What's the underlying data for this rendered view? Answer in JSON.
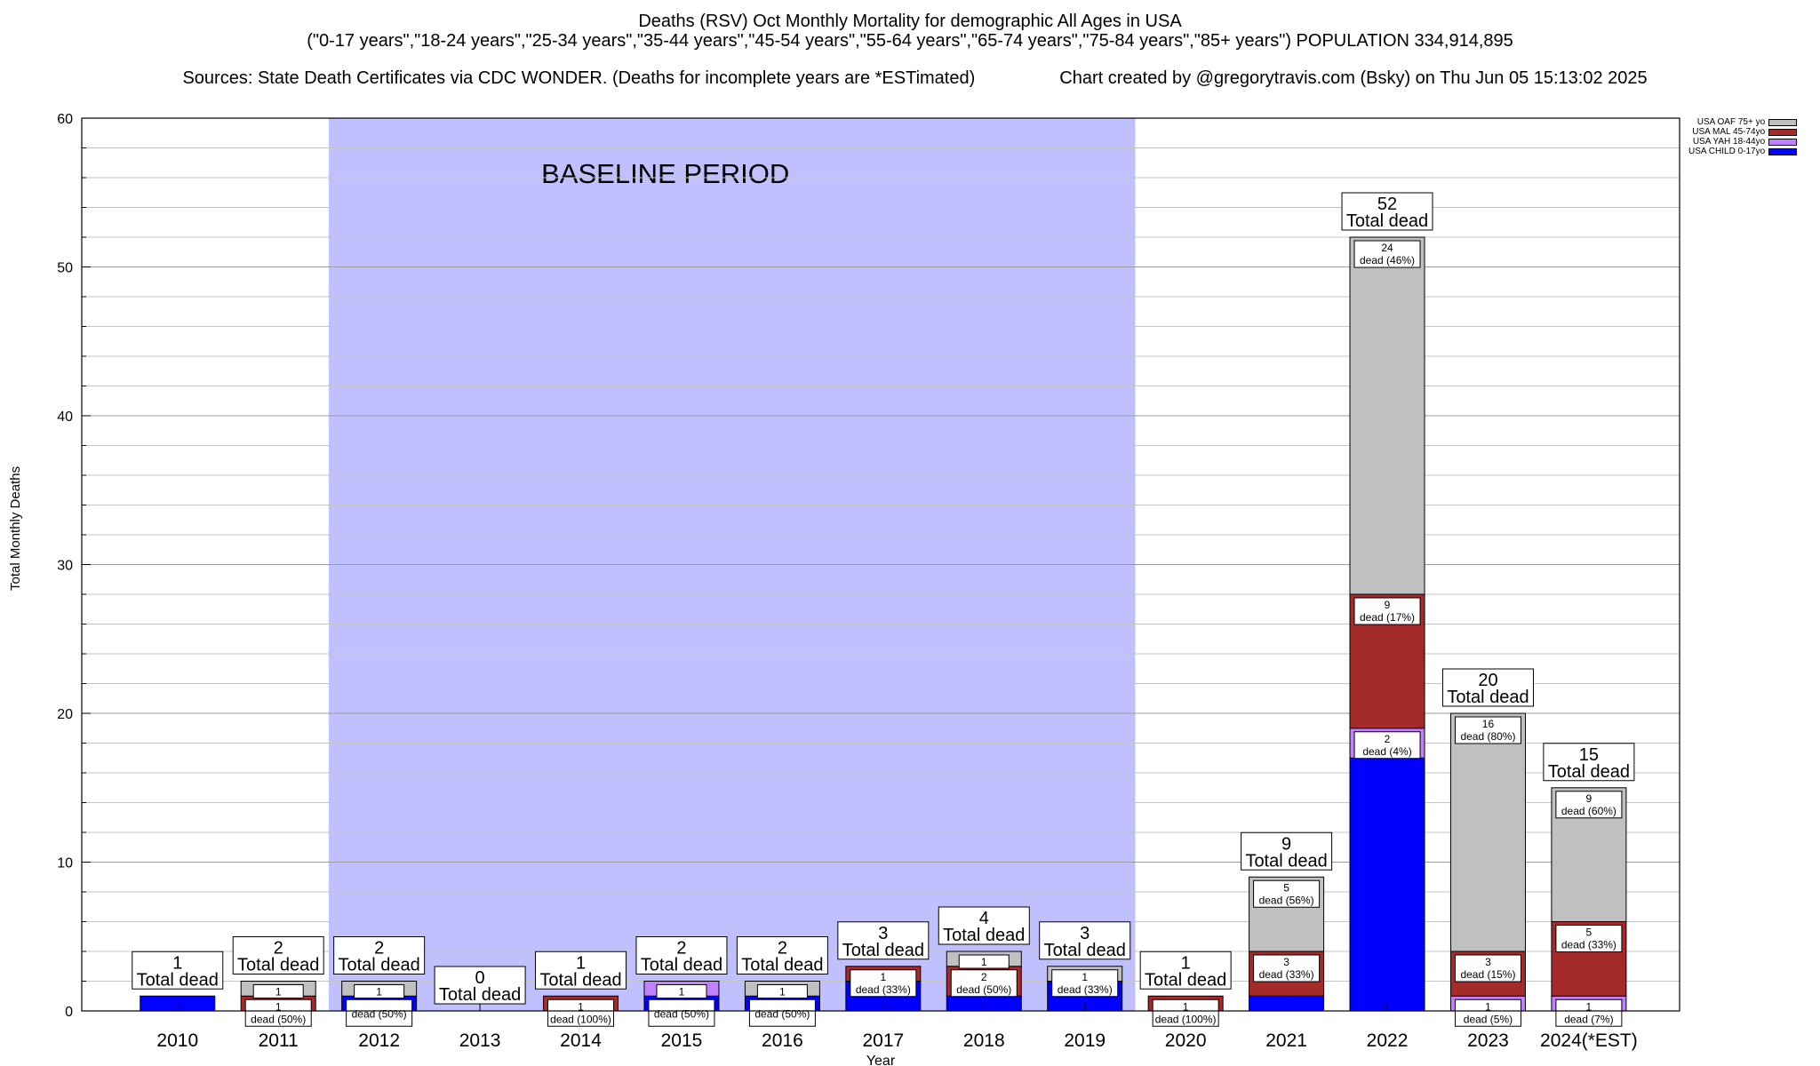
{
  "header": {
    "line1": "Deaths (RSV) Oct Monthly Mortality for demographic All Ages in USA",
    "line2": "(\"0-17 years\",\"18-24 years\",\"25-34 years\",\"35-44 years\",\"45-54 years\",\"55-64 years\",\"65-74 years\",\"75-84 years\",\"85+ years\") POPULATION 334,914,895",
    "line3_left": "Sources: State Death Certificates via CDC WONDER. (Deaths for incomplete years are *ESTimated)",
    "line3_right": "Chart created by @gregorytravis.com (Bsky) on Thu Jun 05 15:13:02 2025"
  },
  "chart_data": {
    "type": "bar",
    "stacked": true,
    "categories": [
      "2010",
      "2011",
      "2012",
      "2013",
      "2014",
      "2015",
      "2016",
      "2017",
      "2018",
      "2019",
      "2020",
      "2021",
      "2022",
      "2023",
      "2024(*EST)"
    ],
    "series": [
      {
        "name": "USA CHILD 0-17yo",
        "color": "#0000ff",
        "values": [
          1,
          0,
          1,
          0,
          0,
          1,
          1,
          2,
          1,
          2,
          0,
          1,
          17,
          0,
          0
        ]
      },
      {
        "name": "USA YAH 18-44yo",
        "color": "#c080ff",
        "values": [
          0,
          0,
          0,
          0,
          0,
          1,
          0,
          0,
          0,
          0,
          0,
          0,
          2,
          1,
          1
        ]
      },
      {
        "name": "USA MAL 45-74yo",
        "color": "#a52a2a",
        "values": [
          0,
          1,
          0,
          0,
          1,
          0,
          0,
          1,
          2,
          0,
          1,
          3,
          9,
          3,
          5
        ]
      },
      {
        "name": "USA OAF 75+ yo",
        "color": "#c0c0c0",
        "values": [
          0,
          1,
          1,
          0,
          0,
          0,
          1,
          0,
          1,
          1,
          0,
          5,
          24,
          16,
          9
        ]
      }
    ],
    "totals": [
      1,
      2,
      2,
      0,
      1,
      2,
      2,
      3,
      4,
      3,
      1,
      9,
      52,
      20,
      15
    ],
    "total_label": "Total dead",
    "segment_labels": [
      {
        "cat": 1,
        "series": 2,
        "text": "1",
        "sub": "dead (50%)"
      },
      {
        "cat": 1,
        "series": 3,
        "text": "1",
        "sub": ""
      },
      {
        "cat": 2,
        "series": 0,
        "text": "",
        "sub": "dead (50%)"
      },
      {
        "cat": 2,
        "series": 3,
        "text": "1",
        "sub": ""
      },
      {
        "cat": 4,
        "series": 2,
        "text": "1",
        "sub": "dead (100%)"
      },
      {
        "cat": 5,
        "series": 0,
        "text": "",
        "sub": "dead (50%)"
      },
      {
        "cat": 5,
        "series": 1,
        "text": "1",
        "sub": ""
      },
      {
        "cat": 6,
        "series": 0,
        "text": "",
        "sub": "dead (50%)"
      },
      {
        "cat": 6,
        "series": 3,
        "text": "1",
        "sub": ""
      },
      {
        "cat": 7,
        "series": 2,
        "text": "1",
        "sub": "dead (33%)"
      },
      {
        "cat": 8,
        "series": 2,
        "text": "2",
        "sub": "dead (50%)"
      },
      {
        "cat": 8,
        "series": 3,
        "text": "1",
        "sub": ""
      },
      {
        "cat": 9,
        "series": 3,
        "text": "1",
        "sub": "dead (33%)"
      },
      {
        "cat": 10,
        "series": 2,
        "text": "1",
        "sub": "dead (100%)"
      },
      {
        "cat": 11,
        "series": 2,
        "text": "3",
        "sub": "dead (33%)"
      },
      {
        "cat": 11,
        "series": 3,
        "text": "5",
        "sub": "dead (56%)"
      },
      {
        "cat": 12,
        "series": 1,
        "text": "2",
        "sub": "dead (4%)"
      },
      {
        "cat": 12,
        "series": 2,
        "text": "9",
        "sub": "dead (17%)"
      },
      {
        "cat": 12,
        "series": 3,
        "text": "24",
        "sub": "dead (46%)"
      },
      {
        "cat": 13,
        "series": 1,
        "text": "1",
        "sub": "dead (5%)"
      },
      {
        "cat": 13,
        "series": 2,
        "text": "3",
        "sub": "dead (15%)"
      },
      {
        "cat": 13,
        "series": 3,
        "text": "16",
        "sub": "dead (80%)"
      },
      {
        "cat": 14,
        "series": 1,
        "text": "1",
        "sub": "dead (7%)"
      },
      {
        "cat": 14,
        "series": 2,
        "text": "5",
        "sub": "dead (33%)"
      },
      {
        "cat": 14,
        "series": 3,
        "text": "9",
        "sub": "dead (60%)"
      }
    ],
    "baseline": {
      "label": "BASELINE PERIOD",
      "from": "2012",
      "to": "2019",
      "color": "#c0c0ff"
    },
    "xlabel": "Year",
    "ylabel": "Total Monthly Deaths",
    "ylim": [
      0,
      60
    ],
    "yticks": [
      0,
      10,
      20,
      30,
      40,
      50,
      60
    ],
    "grid": true,
    "legend_position": "top-right"
  }
}
